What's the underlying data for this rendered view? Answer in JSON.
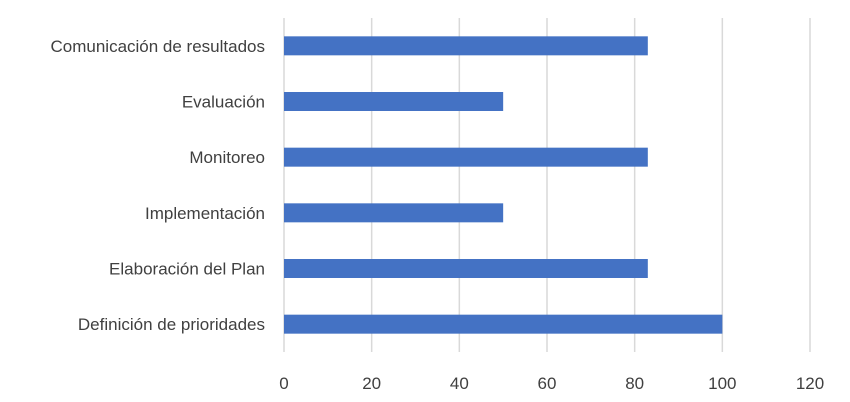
{
  "chart_data": {
    "type": "bar",
    "orientation": "horizontal",
    "categories": [
      "Comunicación de resultados",
      "Evaluación",
      "Monitoreo",
      "Implementación",
      "Elaboración del Plan",
      "Definición de prioridades"
    ],
    "values": [
      83,
      50,
      83,
      50,
      83,
      100
    ],
    "xlim": [
      0,
      120
    ],
    "xticks": [
      0,
      20,
      40,
      60,
      80,
      100,
      120
    ],
    "title": "",
    "xlabel": "",
    "ylabel": "",
    "grid": "vertical",
    "legend": "none",
    "bar_color": "#4472C4",
    "grid_color": "#D9D9D9"
  }
}
